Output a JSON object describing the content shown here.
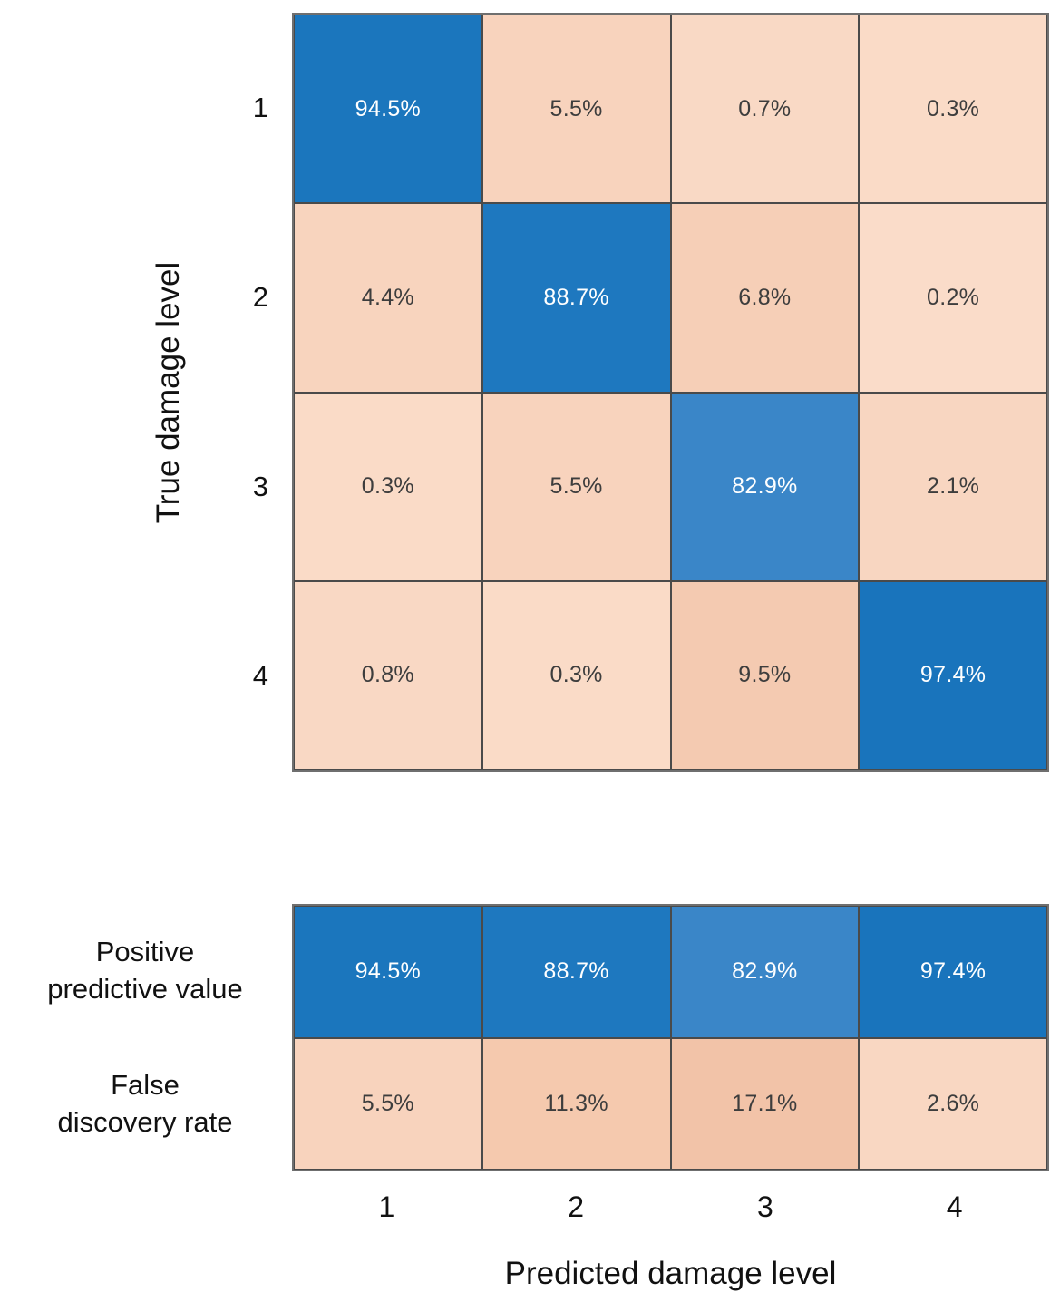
{
  "chart_data": {
    "type": "heatmap",
    "subtype": "confusion-matrix-column-normalized",
    "xlabel": "Predicted damage level",
    "ylabel": "True damage level",
    "x_tick_labels": [
      "1",
      "2",
      "3",
      "4"
    ],
    "y_tick_labels": [
      "1",
      "2",
      "3",
      "4"
    ],
    "matrix_percent": [
      [
        94.5,
        5.5,
        0.7,
        0.3
      ],
      [
        4.4,
        88.7,
        6.8,
        0.2
      ],
      [
        0.3,
        5.5,
        82.9,
        2.1
      ],
      [
        0.8,
        0.3,
        9.5,
        97.4
      ]
    ],
    "matrix_cells": [
      [
        {
          "t": "94.5%",
          "bg": "#1b76bd",
          "fg": "#ffffff"
        },
        {
          "t": "5.5%",
          "bg": "#f8d3bd",
          "fg": "#3d3d3d"
        },
        {
          "t": "0.7%",
          "bg": "#f9d9c5",
          "fg": "#3d3d3d"
        },
        {
          "t": "0.3%",
          "bg": "#fadbc7",
          "fg": "#3d3d3d"
        }
      ],
      [
        {
          "t": "4.4%",
          "bg": "#f8d4be",
          "fg": "#3d3d3d"
        },
        {
          "t": "88.7%",
          "bg": "#1e78bf",
          "fg": "#ffffff"
        },
        {
          "t": "6.8%",
          "bg": "#f6cfb7",
          "fg": "#3d3d3d"
        },
        {
          "t": "0.2%",
          "bg": "#fadcc9",
          "fg": "#3d3d3d"
        }
      ],
      [
        {
          "t": "0.3%",
          "bg": "#fadbc7",
          "fg": "#3d3d3d"
        },
        {
          "t": "5.5%",
          "bg": "#f8d3bd",
          "fg": "#3d3d3d"
        },
        {
          "t": "82.9%",
          "bg": "#3a86c8",
          "fg": "#ffffff"
        },
        {
          "t": "2.1%",
          "bg": "#f8d6c1",
          "fg": "#3d3d3d"
        }
      ],
      [
        {
          "t": "0.8%",
          "bg": "#f9d8c4",
          "fg": "#3d3d3d"
        },
        {
          "t": "0.3%",
          "bg": "#fadbc7",
          "fg": "#3d3d3d"
        },
        {
          "t": "9.5%",
          "bg": "#f4cab1",
          "fg": "#3d3d3d"
        },
        {
          "t": "97.4%",
          "bg": "#1974bc",
          "fg": "#ffffff"
        }
      ]
    ],
    "summary_row_labels": [
      [
        "Positive",
        "predictive value"
      ],
      [
        "False",
        "discovery rate"
      ]
    ],
    "summary_percent": [
      [
        94.5,
        88.7,
        82.9,
        97.4
      ],
      [
        5.5,
        11.3,
        17.1,
        2.6
      ]
    ],
    "summary_cells": [
      [
        {
          "t": "94.5%",
          "bg": "#1b76bd",
          "fg": "#ffffff"
        },
        {
          "t": "88.7%",
          "bg": "#1e78bf",
          "fg": "#ffffff"
        },
        {
          "t": "82.9%",
          "bg": "#3a86c8",
          "fg": "#ffffff"
        },
        {
          "t": "97.4%",
          "bg": "#1974bc",
          "fg": "#ffffff"
        }
      ],
      [
        {
          "t": "5.5%",
          "bg": "#f8d3bd",
          "fg": "#3d3d3d"
        },
        {
          "t": "11.3%",
          "bg": "#f5c9ae",
          "fg": "#3d3d3d"
        },
        {
          "t": "17.1%",
          "bg": "#f2c3a8",
          "fg": "#3d3d3d"
        },
        {
          "t": "2.6%",
          "bg": "#f9d7c2",
          "fg": "#3d3d3d"
        }
      ]
    ],
    "colors": {
      "diagonal_blue": "#1b76bd",
      "diagonal_blue_light": "#3a86c8",
      "off_diagonal_peach_light": "#fadcc9",
      "off_diagonal_peach_dark": "#f2c3a8",
      "grid_line": "#4a4a4a",
      "outer_border": "#6f6f6f",
      "cell_text_dark": "#3d3d3d",
      "cell_text_light": "#ffffff"
    },
    "layout": {
      "grid_on": true,
      "legend": "none",
      "colorbar": "none"
    }
  }
}
